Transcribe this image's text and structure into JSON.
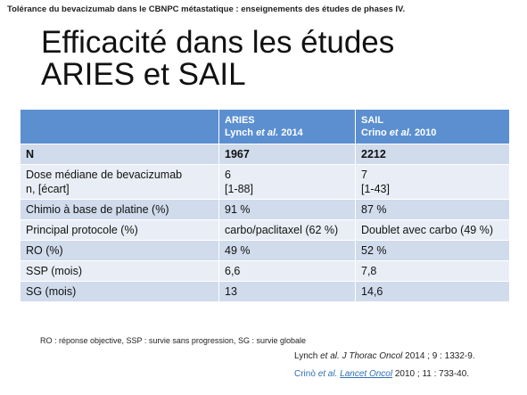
{
  "header": {
    "title": "Tolérance du bevacizumab dans le CBNPC métastatique : enseignements des études de phases IV."
  },
  "slide": {
    "title": [
      "Efficacité dans les études",
      "ARIES et SAIL"
    ]
  },
  "table": {
    "columns": [
      {
        "name": "ARIES",
        "author": "Lynch",
        "etal": "et al.",
        "year": "2014"
      },
      {
        "name": "SAIL",
        "author": "Crino",
        "etal": "et al.",
        "year": "2010"
      }
    ],
    "rows": [
      [
        [
          "N"
        ],
        [
          "1967"
        ],
        [
          "2212"
        ]
      ],
      [
        [
          "Dose médiane de bevacizumab",
          "n, [écart]"
        ],
        [
          "6",
          "[1-88]"
        ],
        [
          "7",
          "[1-43]"
        ]
      ],
      [
        [
          "Chimio à base de platine (%)"
        ],
        [
          "91 %"
        ],
        [
          "87 %"
        ]
      ],
      [
        [
          "Principal protocole (%)"
        ],
        [
          "carbo/paclitaxel (62 %)"
        ],
        [
          "Doublet avec carbo (49 %)"
        ]
      ],
      [
        [
          "RO (%)"
        ],
        [
          "49 %"
        ],
        [
          "52 %"
        ]
      ],
      [
        [
          "SSP (mois)"
        ],
        [
          "6,6"
        ],
        [
          "7,8"
        ]
      ],
      [
        [
          "SG (mois)"
        ],
        [
          "13"
        ],
        [
          "14,6"
        ]
      ]
    ]
  },
  "footnote": "RO : réponse objective, SSP : survie sans progression, SG : survie globale",
  "references": [
    [
      "Lynch",
      "et al.",
      "J Thorac Oncol",
      "2014 ; 9 : 1332-9."
    ],
    [
      "Crinò",
      "et al.",
      "Lancet Oncol",
      "2010 ; 11 : 733-40."
    ]
  ]
}
